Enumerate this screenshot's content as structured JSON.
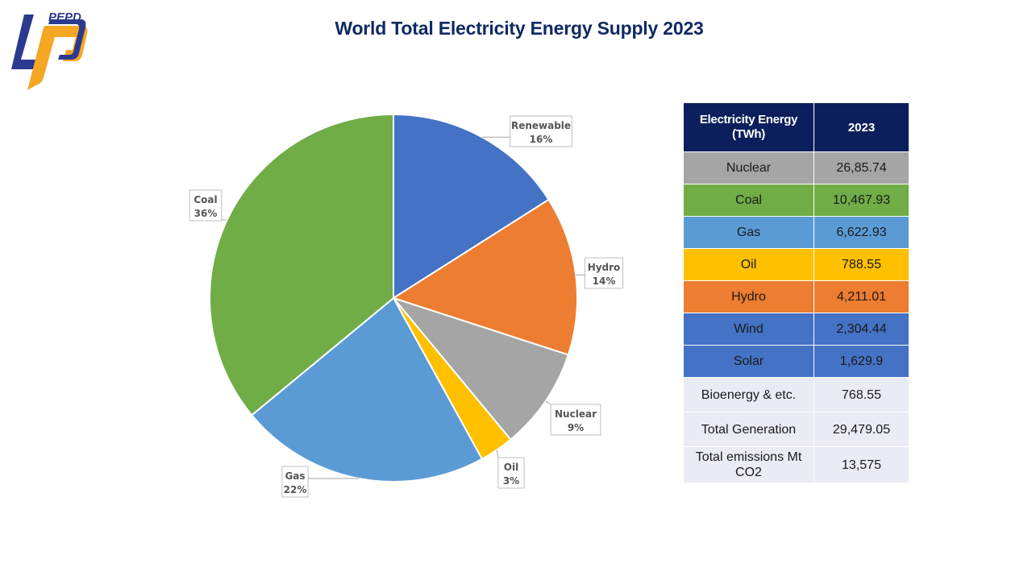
{
  "logo": {
    "text": "PEPD",
    "colors": {
      "navy": "#2b3a8f",
      "orange": "#f5a623"
    }
  },
  "title": "World Total Electricity Energy Supply 2023",
  "chart_data": {
    "type": "pie",
    "title": "World Total Electricity Energy Supply 2023",
    "slices": [
      {
        "label": "Renewable",
        "value": 16,
        "display": "16%",
        "color": "#4472c4"
      },
      {
        "label": "Hydro",
        "value": 14,
        "display": "14%",
        "color": "#ed7d31"
      },
      {
        "label": "Nuclear",
        "value": 9,
        "display": "9%",
        "color": "#a5a5a5"
      },
      {
        "label": "Oil",
        "value": 3,
        "display": "3%",
        "color": "#ffc000"
      },
      {
        "label": "Gas",
        "value": 22,
        "display": "22%",
        "color": "#5b9bd5"
      },
      {
        "label": "Coal",
        "value": 36,
        "display": "36%",
        "color": "#70ad47"
      }
    ],
    "start": "12 o'clock",
    "direction": "clockwise",
    "legend": "none",
    "data_labels": "callouts outside"
  },
  "table": {
    "header": {
      "col1": "Electricity Energy (TWh)",
      "col2": "2023"
    },
    "rows": [
      {
        "label": "Nuclear",
        "value": "26,85.74",
        "bg": "#a5a5a5"
      },
      {
        "label": "Coal",
        "value": "10,467.93",
        "bg": "#70ad47"
      },
      {
        "label": "Gas",
        "value": "6,622.93",
        "bg": "#5b9bd5"
      },
      {
        "label": "Oil",
        "value": "788.55",
        "bg": "#ffc000"
      },
      {
        "label": "Hydro",
        "value": "4,211.01",
        "bg": "#ed7d31"
      },
      {
        "label": "Wind",
        "value": "2,304.44",
        "bg": "#4472c4"
      },
      {
        "label": "Solar",
        "value": "1,629.9",
        "bg": "#4472c4"
      },
      {
        "label": "Bioenergy & etc.",
        "value": "768.55",
        "bg": "#e9ebf5"
      },
      {
        "label": "Total Generation",
        "value": "29,479.05",
        "bg": "#e9ebf5"
      },
      {
        "label": "Total emissions Mt CO2",
        "value": "13,575",
        "bg": "#e9ebf5"
      }
    ]
  }
}
